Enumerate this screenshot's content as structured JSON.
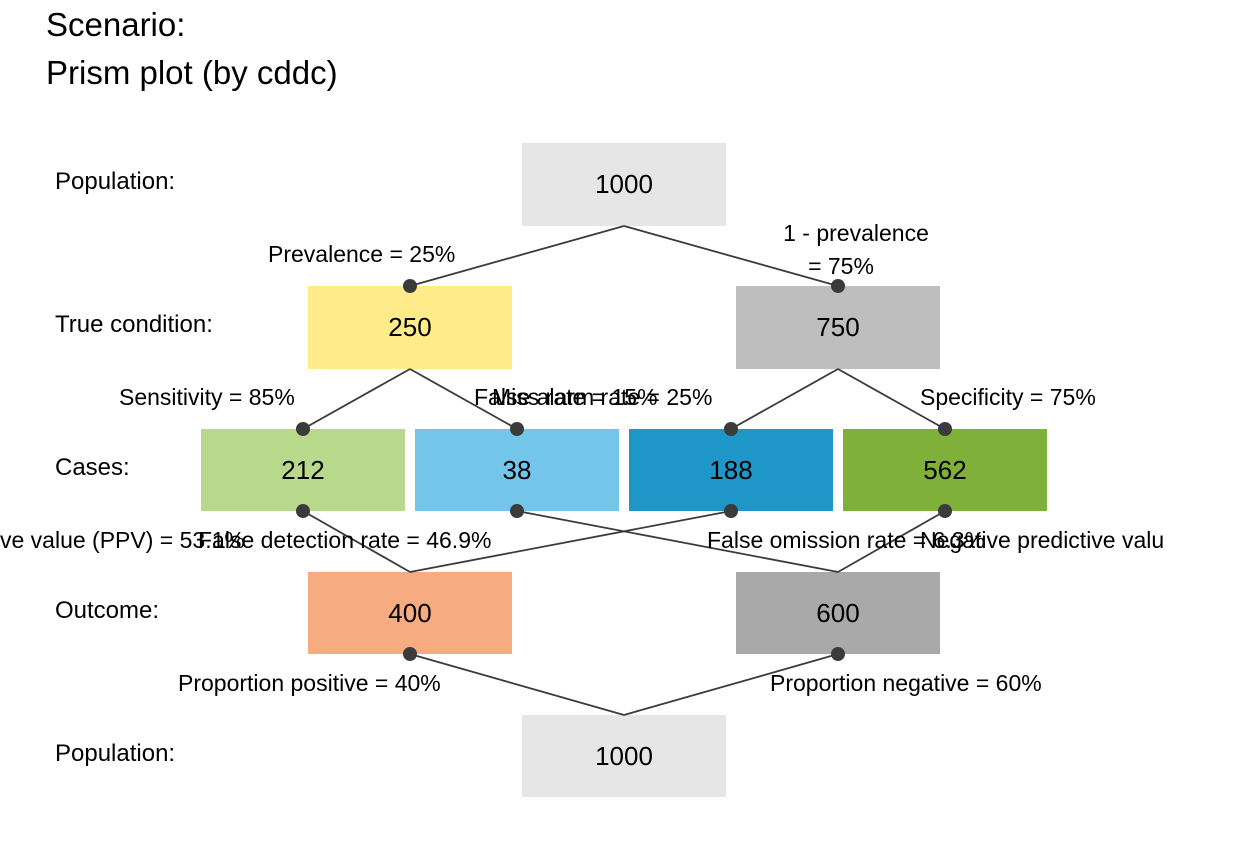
{
  "title_line1": "Scenario:",
  "title_line2": "Prism plot (by cddc)",
  "rows": {
    "population_top": "Population:",
    "true_condition": "True condition:",
    "cases": "Cases:",
    "outcome": "Outcome:",
    "population_bottom": "Population:"
  },
  "boxes": {
    "pop_top": {
      "value": "1000",
      "color": "#e6e6e6"
    },
    "cond_true": {
      "value": "250",
      "color": "#ffeb8a"
    },
    "cond_false": {
      "value": "750",
      "color": "#bebebe"
    },
    "hi": {
      "value": "212",
      "color": "#b8d98c"
    },
    "mi": {
      "value": "38",
      "color": "#73c6ea"
    },
    "fa": {
      "value": "188",
      "color": "#1e96c8"
    },
    "cr": {
      "value": "562",
      "color": "#7fb13a"
    },
    "dec_pos": {
      "value": "400",
      "color": "#f6ab80"
    },
    "dec_neg": {
      "value": "600",
      "color": "#a9a9a9"
    },
    "pop_bot": {
      "value": "1000",
      "color": "#e6e6e6"
    }
  },
  "labels": {
    "prevalence": "Prevalence = 25%",
    "one_minus_prev_1": "1 - prevalence",
    "one_minus_prev_2": "= 75%",
    "sensitivity": "Sensitivity = 85%",
    "miss_rate": "Miss rate = 15%",
    "false_alarm_rate": "False alarm rate = 25%",
    "specificity": "Specificity = 75%",
    "ppv": "ve value (PPV) = 53.1%",
    "fdr": "False detection rate = 46.9%",
    "for": "False omission rate = 6.3%",
    "npv": "Negative predictive valu",
    "prop_pos": "Proportion positive = 40%",
    "prop_neg": "Proportion negative = 60%"
  },
  "edge_color": "#3b3b3b"
}
